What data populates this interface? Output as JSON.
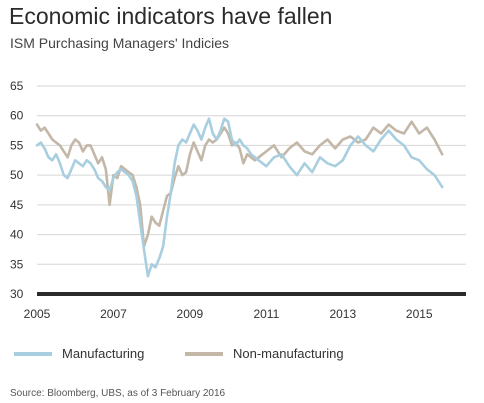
{
  "title": "Economic indicators have fallen",
  "subtitle": "ISM Purchasing Managers' Indicies",
  "source": "Source: Bloomberg, UBS, as of 3 February 2016",
  "colors": {
    "manufacturing": "#a8cfe0",
    "non_manufacturing": "#c3b7a8",
    "baseline": "#2b2b2b",
    "grid": "#d6d6d6"
  },
  "chart_data": {
    "type": "line",
    "title": "Economic indicators have fallen",
    "subtitle": "ISM Purchasing Managers' Indicies",
    "xlabel": "",
    "ylabel": "",
    "xlim": [
      2005,
      2015.7
    ],
    "ylim": [
      30,
      65
    ],
    "yticks": [
      30,
      35,
      40,
      45,
      50,
      55,
      60,
      65
    ],
    "xticks": [
      2005,
      2007,
      2009,
      2011,
      2013,
      2015
    ],
    "grid": true,
    "legend": "bottom",
    "series": [
      {
        "name": "Manufacturing",
        "color": "#a8cfe0",
        "x": [
          2005.0,
          2005.1,
          2005.2,
          2005.3,
          2005.4,
          2005.5,
          2005.6,
          2005.7,
          2005.8,
          2005.9,
          2006.0,
          2006.1,
          2006.2,
          2006.3,
          2006.4,
          2006.5,
          2006.6,
          2006.7,
          2006.8,
          2006.9,
          2007.0,
          2007.1,
          2007.2,
          2007.3,
          2007.4,
          2007.5,
          2007.6,
          2007.7,
          2007.8,
          2007.9,
          2008.0,
          2008.1,
          2008.2,
          2008.3,
          2008.4,
          2008.5,
          2008.6,
          2008.7,
          2008.8,
          2008.9,
          2009.0,
          2009.1,
          2009.2,
          2009.3,
          2009.4,
          2009.5,
          2009.6,
          2009.7,
          2009.8,
          2009.9,
          2010.0,
          2010.1,
          2010.2,
          2010.3,
          2010.4,
          2010.5,
          2010.6,
          2010.7,
          2010.8,
          2010.9,
          2011.0,
          2011.2,
          2011.4,
          2011.6,
          2011.8,
          2012.0,
          2012.2,
          2012.4,
          2012.6,
          2012.8,
          2013.0,
          2013.2,
          2013.4,
          2013.6,
          2013.8,
          2014.0,
          2014.2,
          2014.4,
          2014.6,
          2014.8,
          2015.0,
          2015.2,
          2015.4,
          2015.6
        ],
        "values": [
          55.0,
          55.5,
          54.5,
          53.0,
          52.5,
          53.5,
          52.0,
          50.0,
          49.5,
          51.0,
          52.5,
          52.0,
          51.5,
          52.5,
          52.0,
          51.0,
          49.5,
          49.0,
          48.0,
          47.5,
          49.5,
          50.5,
          51.0,
          50.5,
          50.0,
          49.0,
          46.5,
          42.0,
          37.5,
          33.0,
          35.0,
          34.5,
          36.0,
          38.0,
          43.0,
          47.0,
          52.0,
          55.0,
          56.0,
          55.5,
          57.0,
          58.5,
          57.5,
          56.0,
          58.0,
          59.5,
          57.0,
          56.0,
          57.5,
          59.5,
          59.0,
          56.0,
          55.0,
          56.0,
          55.0,
          54.5,
          53.5,
          53.0,
          52.5,
          52.0,
          51.5,
          53.0,
          53.5,
          51.5,
          50.0,
          52.0,
          50.5,
          53.0,
          52.0,
          51.5,
          52.5,
          55.0,
          56.5,
          55.0,
          54.0,
          56.0,
          57.5,
          56.0,
          55.0,
          53.0,
          52.5,
          51.0,
          50.0,
          48.0
        ],
        "estimated": true
      },
      {
        "name": "Non-manufacturing",
        "color": "#c3b7a8",
        "x": [
          2005.0,
          2005.1,
          2005.2,
          2005.3,
          2005.4,
          2005.5,
          2005.6,
          2005.7,
          2005.8,
          2005.9,
          2006.0,
          2006.1,
          2006.2,
          2006.3,
          2006.4,
          2006.5,
          2006.6,
          2006.7,
          2006.8,
          2006.9,
          2007.0,
          2007.1,
          2007.2,
          2007.3,
          2007.4,
          2007.5,
          2007.6,
          2007.7,
          2007.8,
          2007.9,
          2008.0,
          2008.1,
          2008.2,
          2008.3,
          2008.4,
          2008.5,
          2008.6,
          2008.7,
          2008.8,
          2008.9,
          2009.0,
          2009.1,
          2009.2,
          2009.3,
          2009.4,
          2009.5,
          2009.6,
          2009.7,
          2009.8,
          2009.9,
          2010.0,
          2010.1,
          2010.2,
          2010.3,
          2010.4,
          2010.5,
          2010.6,
          2010.7,
          2010.8,
          2010.9,
          2011.0,
          2011.2,
          2011.4,
          2011.6,
          2011.8,
          2012.0,
          2012.2,
          2012.4,
          2012.6,
          2012.8,
          2013.0,
          2013.2,
          2013.4,
          2013.6,
          2013.8,
          2014.0,
          2014.2,
          2014.4,
          2014.6,
          2014.8,
          2015.0,
          2015.2,
          2015.4,
          2015.6
        ],
        "values": [
          58.5,
          57.5,
          58.0,
          57.0,
          56.0,
          55.5,
          55.0,
          54.0,
          53.0,
          55.0,
          56.0,
          55.5,
          54.0,
          55.0,
          55.0,
          53.5,
          52.0,
          53.0,
          51.0,
          45.0,
          50.0,
          49.5,
          51.5,
          51.0,
          50.5,
          50.0,
          48.0,
          45.0,
          38.0,
          40.0,
          43.0,
          42.0,
          41.5,
          44.0,
          46.5,
          47.0,
          49.5,
          51.5,
          50.0,
          50.5,
          53.5,
          55.5,
          54.0,
          52.5,
          55.0,
          56.0,
          55.5,
          56.0,
          57.0,
          58.0,
          57.0,
          55.0,
          55.5,
          54.5,
          52.0,
          53.5,
          53.0,
          52.5,
          53.0,
          53.5,
          54.0,
          55.0,
          53.0,
          54.5,
          55.5,
          54.0,
          53.5,
          55.0,
          56.0,
          54.5,
          56.0,
          56.5,
          55.5,
          56.0,
          58.0,
          57.0,
          58.5,
          57.5,
          57.0,
          59.0,
          57.0,
          58.0,
          56.0,
          53.5
        ],
        "estimated": true
      }
    ]
  }
}
